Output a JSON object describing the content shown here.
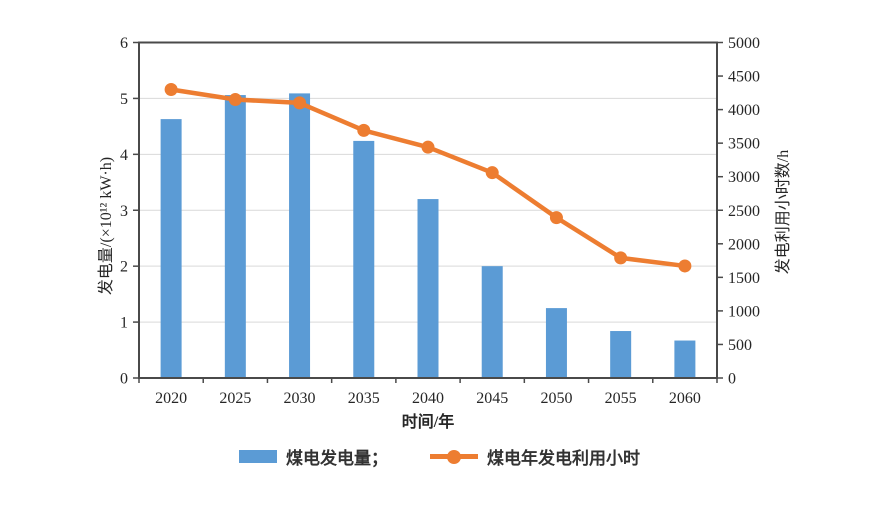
{
  "chart_data": {
    "type": "bar",
    "combo": "bar+line dual axis",
    "categories": [
      "2020",
      "2025",
      "2030",
      "2035",
      "2040",
      "2045",
      "2050",
      "2055",
      "2060"
    ],
    "series": [
      {
        "name": "煤电发电量",
        "legend_label": "煤电发电量；",
        "type": "bar",
        "axis": "left",
        "color": "#5B9BD5",
        "values": [
          4.63,
          5.06,
          5.09,
          4.24,
          3.2,
          2.0,
          1.25,
          0.84,
          0.67
        ]
      },
      {
        "name": "煤电年发电利用小时",
        "legend_label": "煤电年发电利用小时",
        "type": "line",
        "axis": "right",
        "color": "#ED7D31",
        "values": [
          4300,
          4150,
          4100,
          3690,
          3440,
          3060,
          2390,
          1790,
          1670
        ]
      }
    ],
    "title": "",
    "xlabel": "时间/年",
    "ylabel_left": "发电量/(×10¹² kW·h)",
    "ylabel_right": "发电利用小时数/h",
    "ylim_left": [
      0,
      6
    ],
    "ytick_step_left": 1,
    "ylim_right": [
      0,
      5000
    ],
    "ytick_step_right": 500,
    "grid": "horizontal gridlines at left-axis integers",
    "legend_position": "bottom",
    "colors": {
      "bar": "#5B9BD5",
      "line": "#ED7D31",
      "frame": "#4a4a4a",
      "gridline": "#d9d9d9",
      "text": "#262626"
    }
  }
}
